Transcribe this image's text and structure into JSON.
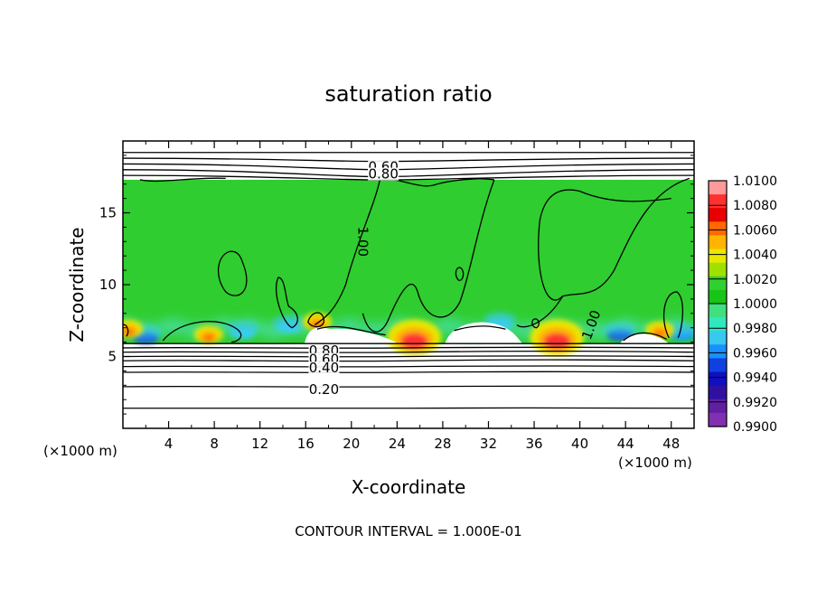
{
  "chart_data": {
    "type": "heatmap",
    "title": "saturation ratio",
    "xlabel": "X-coordinate",
    "ylabel": "Z-coordinate",
    "x_unit_left": "(×1000 m)",
    "x_unit_right": "(×1000 m)",
    "footer": "CONTOUR INTERVAL = 1.000E-01",
    "xlim": [
      0,
      50
    ],
    "ylim": [
      0,
      20
    ],
    "xticks": [
      4,
      8,
      12,
      16,
      20,
      24,
      28,
      32,
      36,
      40,
      44,
      48
    ],
    "yticks": [
      5,
      10,
      15
    ],
    "colorbar": {
      "levels": [
        "1.0100",
        "1.0080",
        "1.0060",
        "1.0040",
        "1.0020",
        "1.0000",
        "0.9980",
        "0.9960",
        "0.9940",
        "0.9920",
        "0.9900"
      ],
      "colors": [
        "#ff9a9a",
        "#ff3030",
        "#e80000",
        "#ff6a00",
        "#ffb400",
        "#e8e800",
        "#a0e000",
        "#30d030",
        "#18c418",
        "#40e080",
        "#30e8c0",
        "#38c8f0",
        "#1890ff",
        "#1040e0",
        "#1010c0",
        "#3010a0",
        "#6020a0",
        "#8030b0"
      ]
    },
    "contour_labels": [
      {
        "text": "0.60",
        "x": 22.8,
        "z": 18.2
      },
      {
        "text": "0.80",
        "x": 22.8,
        "z": 17.7
      },
      {
        "text": "1.00",
        "x": 21.0,
        "z": 13.0
      },
      {
        "text": "1.00",
        "x": 41.0,
        "z": 7.2
      },
      {
        "text": "0.80",
        "x": 17.6,
        "z": 5.4
      },
      {
        "text": "0.60",
        "x": 17.6,
        "z": 4.8
      },
      {
        "text": "0.40",
        "x": 17.6,
        "z": 4.2
      },
      {
        "text": "0.20",
        "x": 17.6,
        "z": 2.7
      }
    ],
    "moist_layer": {
      "bottom_z": 5.9,
      "top_z": 17.3
    },
    "warm_spots": [
      {
        "x": 25.5,
        "z": 6.2,
        "max": 1.008
      },
      {
        "x": 38.0,
        "z": 6.2,
        "max": 1.007
      },
      {
        "x": 7.5,
        "z": 6.4,
        "max": 1.004
      },
      {
        "x": 0.5,
        "z": 6.8,
        "max": 1.006
      },
      {
        "x": 17.0,
        "z": 7.3,
        "max": 1.005
      },
      {
        "x": 47.0,
        "z": 6.7,
        "max": 1.004
      }
    ],
    "cool_spots": [
      {
        "x": 2.0,
        "z": 6.3,
        "min": 0.993
      },
      {
        "x": 10.5,
        "z": 6.6,
        "min": 0.996
      },
      {
        "x": 14.5,
        "z": 7.0,
        "min": 0.9965
      },
      {
        "x": 33.0,
        "z": 7.2,
        "min": 0.996
      },
      {
        "x": 43.5,
        "z": 6.5,
        "min": 0.994
      },
      {
        "x": 49.0,
        "z": 6.5,
        "min": 0.9945
      }
    ]
  }
}
